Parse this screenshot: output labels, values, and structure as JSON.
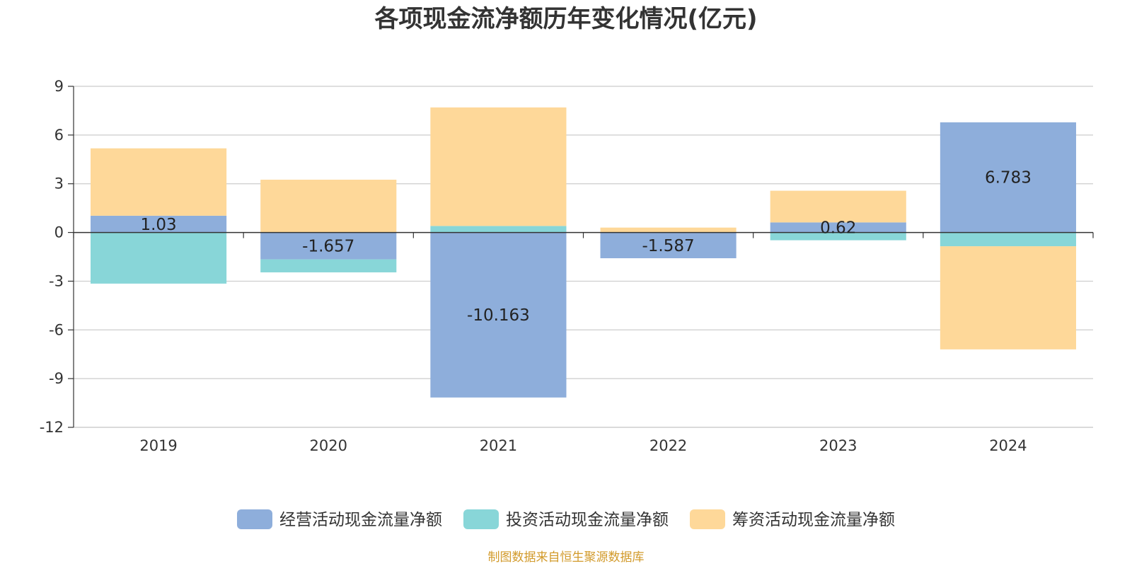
{
  "chart_data": {
    "type": "bar",
    "stacked": true,
    "title": "各项现金流净额历年变化情况(亿元)",
    "xlabel": "",
    "ylabel": "",
    "categories": [
      "2019",
      "2020",
      "2021",
      "2022",
      "2023",
      "2024"
    ],
    "ylim": [
      -12,
      9
    ],
    "yticks": [
      9,
      6,
      3,
      0,
      -3,
      -6,
      -9,
      -12
    ],
    "grid": true,
    "legend_position": "bottom",
    "series": [
      {
        "name": "经营活动现金流量净额",
        "color": "#8eaedb",
        "show_labels": true,
        "values": [
          1.03,
          -1.657,
          -10.163,
          -1.587,
          0.62,
          6.783
        ]
      },
      {
        "name": "投资活动现金流量净额",
        "color": "#88d6d8",
        "show_labels": false,
        "values": [
          -3.15,
          -0.8,
          0.4,
          0.0,
          -0.48,
          -0.85
        ]
      },
      {
        "name": "筹资活动现金流量净额",
        "color": "#fed899",
        "show_labels": false,
        "values": [
          4.15,
          3.25,
          7.3,
          0.3,
          1.95,
          -6.35
        ]
      }
    ]
  },
  "footer": {
    "source_text": "制图数据来自恒生聚源数据库",
    "source_color": "#d29a2a"
  }
}
